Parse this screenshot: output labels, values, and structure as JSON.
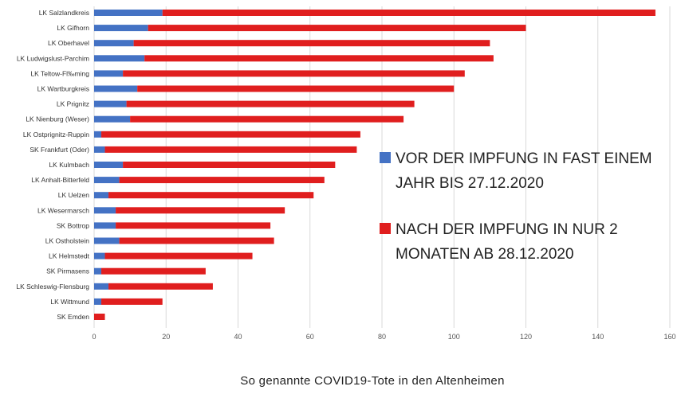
{
  "chart_data": {
    "type": "bar",
    "orientation": "horizontal",
    "stacked": true,
    "title": "So genannte COVID19-Tote in den Altenheimen",
    "xlim": [
      0,
      160
    ],
    "xticks": [
      0,
      20,
      40,
      60,
      80,
      100,
      120,
      140,
      160
    ],
    "grid": true,
    "legend_placement": "right",
    "categories": [
      "LK Salzlandkreis",
      "LK Gifhorn",
      "LK Oberhavel",
      "LK Ludwigslust-Parchim",
      "LK Teltow-Fl‰ming",
      "LK Wartburgkreis",
      "LK Prignitz",
      "LK Nienburg (Weser)",
      "LK Ostprignitz-Ruppin",
      "SK Frankfurt (Oder)",
      "LK Kulmbach",
      "LK Anhalt-Bitterfeld",
      "LK Uelzen",
      "LK Wesermarsch",
      "SK Bottrop",
      "LK Ostholstein",
      "LK Helmstedt",
      "SK Pirmasens",
      "LK Schleswig-Flensburg",
      "LK Wittmund",
      "SK Emden"
    ],
    "series": [
      {
        "name": "VOR DER IMPFUNG IN FAST EINEM JAHR BIS 27.12.2020",
        "color": "#4472c4",
        "values": [
          19,
          15,
          11,
          14,
          8,
          12,
          9,
          10,
          2,
          3,
          8,
          7,
          4,
          6,
          6,
          7,
          3,
          2,
          4,
          2,
          0
        ]
      },
      {
        "name": "NACH DER IMPFUNG IN NUR 2 MONATEN AB 28.12.2020",
        "color": "#e01e1e",
        "values": [
          137,
          105,
          99,
          97,
          95,
          88,
          80,
          76,
          72,
          70,
          59,
          57,
          57,
          47,
          43,
          43,
          41,
          29,
          29,
          17,
          3
        ]
      }
    ]
  },
  "legend": {
    "items": [
      {
        "line1": "VOR DER IMPFUNG IN FAST EINEM",
        "line2": "JAHR BIS 27.12.2020",
        "color": "#4472c4"
      },
      {
        "line1": "NACH DER IMPFUNG IN NUR 2",
        "line2": "MONATEN AB 28.12.2020",
        "color": "#e01e1e"
      }
    ]
  }
}
